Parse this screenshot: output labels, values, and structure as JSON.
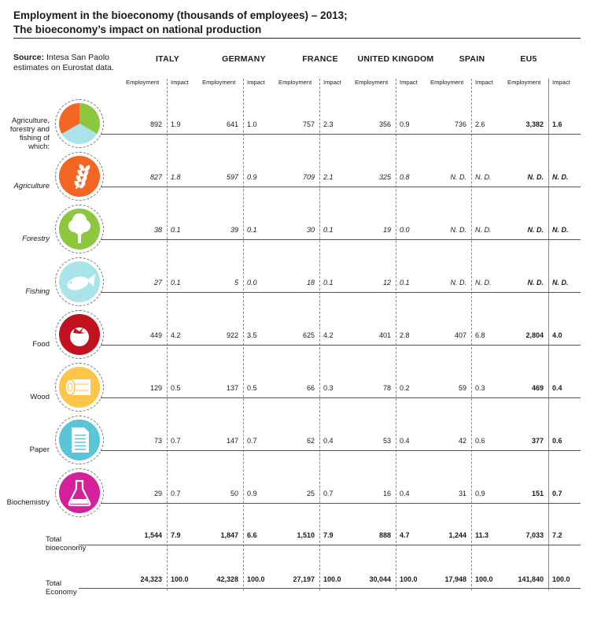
{
  "title": "Employment in the bioeconomy (thousands of employees) – 2013;",
  "subtitle": "The bioeconomy’s impact on national production",
  "source_label": "Source:",
  "source_text": "Intesa San Paolo estimates on Eurostat data.",
  "col_employment": "Employment",
  "col_impact": "Impact",
  "chart_data": {
    "type": "table",
    "columns": [
      "ITALY",
      "GERMANY",
      "FRANCE",
      "UNITED KINGDOM",
      "SPAIN",
      "EU5"
    ],
    "rows": [
      {
        "label": "Agriculture, forestry and fishing of which:",
        "icon": "pie-icon",
        "style": "normal",
        "values": [
          [
            "892",
            "1.9"
          ],
          [
            "641",
            "1.0"
          ],
          [
            "757",
            "2.3"
          ],
          [
            "356",
            "0.9"
          ],
          [
            "736",
            "2.6"
          ],
          [
            "3,382",
            "1.6"
          ]
        ]
      },
      {
        "label": "Agriculture",
        "icon": "wheat-icon",
        "style": "italic",
        "values": [
          [
            "827",
            "1.8"
          ],
          [
            "597",
            "0.9"
          ],
          [
            "709",
            "2.1"
          ],
          [
            "325",
            "0.8"
          ],
          [
            "N. D.",
            "N. D."
          ],
          [
            "N. D.",
            "N. D."
          ]
        ]
      },
      {
        "label": "Forestry",
        "icon": "tree-icon",
        "style": "italic",
        "values": [
          [
            "38",
            "0.1"
          ],
          [
            "39",
            "0.1"
          ],
          [
            "30",
            "0.1"
          ],
          [
            "19",
            "0.0"
          ],
          [
            "N. D.",
            "N. D."
          ],
          [
            "N. D.",
            "N. D."
          ]
        ]
      },
      {
        "label": "Fishing",
        "icon": "fish-icon",
        "style": "italic",
        "values": [
          [
            "27",
            "0.1"
          ],
          [
            "5",
            "0.0"
          ],
          [
            "18",
            "0.1"
          ],
          [
            "12",
            "0.1"
          ],
          [
            "N. D.",
            "N. D."
          ],
          [
            "N. D.",
            "N. D."
          ]
        ]
      },
      {
        "label": "Food",
        "icon": "tomato-icon",
        "style": "normal",
        "values": [
          [
            "449",
            "4.2"
          ],
          [
            "922",
            "3.5"
          ],
          [
            "625",
            "4.2"
          ],
          [
            "401",
            "2.8"
          ],
          [
            "407",
            "6.8"
          ],
          [
            "2,804",
            "4.0"
          ]
        ]
      },
      {
        "label": "Wood",
        "icon": "log-icon",
        "style": "normal",
        "values": [
          [
            "129",
            "0.5"
          ],
          [
            "137",
            "0.5"
          ],
          [
            "66",
            "0.3"
          ],
          [
            "78",
            "0.2"
          ],
          [
            "59",
            "0.3"
          ],
          [
            "469",
            "0.4"
          ]
        ]
      },
      {
        "label": "Paper",
        "icon": "document-icon",
        "style": "normal",
        "values": [
          [
            "73",
            "0.7"
          ],
          [
            "147",
            "0.7"
          ],
          [
            "62",
            "0.4"
          ],
          [
            "53",
            "0.4"
          ],
          [
            "42",
            "0.6"
          ],
          [
            "377",
            "0.6"
          ]
        ]
      },
      {
        "label": "Biochemistry",
        "icon": "flask-icon",
        "style": "normal",
        "values": [
          [
            "29",
            "0.7"
          ],
          [
            "50",
            "0.9"
          ],
          [
            "25",
            "0.7"
          ],
          [
            "16",
            "0.4"
          ],
          [
            "31",
            "0.9"
          ],
          [
            "151",
            "0.7"
          ]
        ]
      },
      {
        "label": "Total bioeconomy",
        "icon": "",
        "style": "total",
        "values": [
          [
            "1,544",
            "7.9"
          ],
          [
            "1,847",
            "6.6"
          ],
          [
            "1,510",
            "7.9"
          ],
          [
            "888",
            "4.7"
          ],
          [
            "1,244",
            "11.3"
          ],
          [
            "7,033",
            "7.2"
          ]
        ]
      },
      {
        "label": "Total Economy",
        "icon": "",
        "style": "total",
        "values": [
          [
            "24,323",
            "100.0"
          ],
          [
            "42,328",
            "100.0"
          ],
          [
            "27,197",
            "100.0"
          ],
          [
            "30,044",
            "100.0"
          ],
          [
            "17,948",
            "100.0"
          ],
          [
            "141,840",
            "100.0"
          ]
        ]
      }
    ]
  },
  "colors": {
    "orange": "#f26522",
    "green": "#8dc63f",
    "aqua": "#a8e4ea",
    "red": "#c1121f",
    "yellow": "#fdc54a",
    "blue": "#5bc5d8",
    "magenta": "#d61f9b"
  }
}
